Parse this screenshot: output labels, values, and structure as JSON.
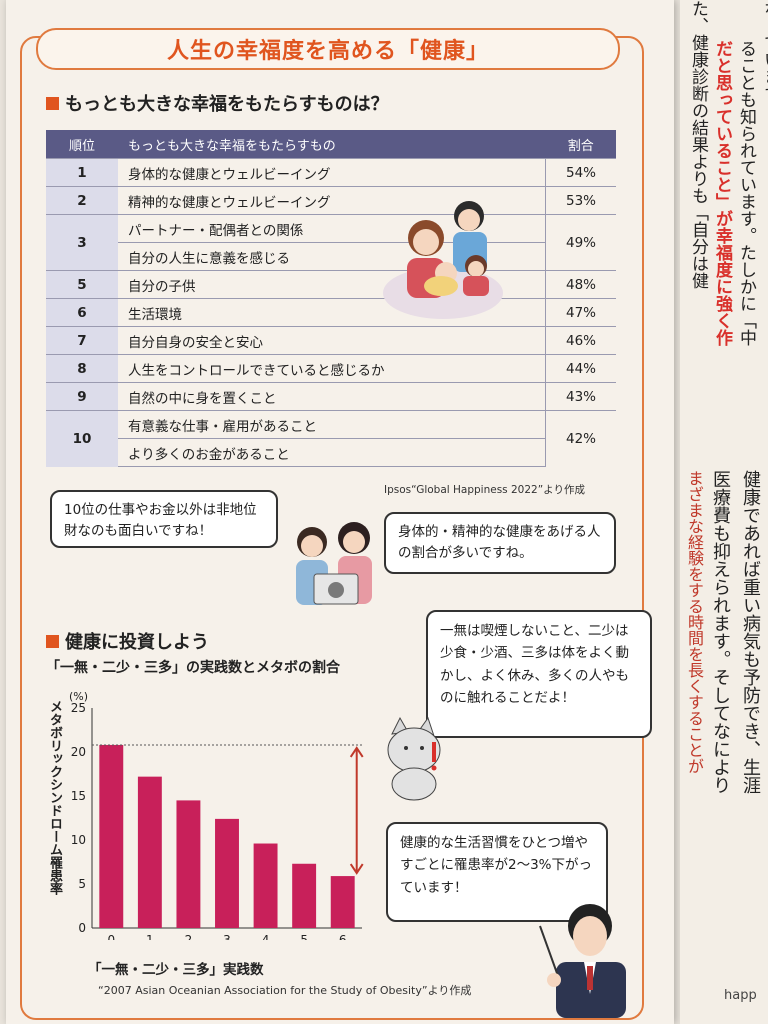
{
  "title": "人生の幸福度を高める「健康」",
  "section1": {
    "heading": "もっとも大きな幸福をもたらすものは？"
  },
  "table": {
    "headers": [
      "順位",
      "もっとも大きな幸福をもたらすもの",
      "割合"
    ],
    "rows": [
      {
        "rank": "1",
        "items": [
          "身体的な健康とウェルビーイング"
        ],
        "pct": "54%"
      },
      {
        "rank": "2",
        "items": [
          "精神的な健康とウェルビーイング"
        ],
        "pct": "53%"
      },
      {
        "rank": "3",
        "items": [
          "パートナー・配偶者との関係",
          "自分の人生に意義を感じる"
        ],
        "pct": "49%"
      },
      {
        "rank": "5",
        "items": [
          "自分の子供"
        ],
        "pct": "48%"
      },
      {
        "rank": "6",
        "items": [
          "生活環境"
        ],
        "pct": "47%"
      },
      {
        "rank": "7",
        "items": [
          "自分自身の安全と安心"
        ],
        "pct": "46%"
      },
      {
        "rank": "8",
        "items": [
          "人生をコントロールできていると感じるか"
        ],
        "pct": "44%"
      },
      {
        "rank": "9",
        "items": [
          "自然の中に身を置くこと"
        ],
        "pct": "43%"
      },
      {
        "rank": "10",
        "items": [
          "有意義な仕事・雇用があること",
          "より多くのお金があること"
        ],
        "pct": "42%"
      }
    ],
    "source": "Ipsos“Global Happiness 2022”より作成"
  },
  "bubbles": {
    "left": "10位の仕事やお金以外は非地位財なのも面白いですね！",
    "right": "身体的・精神的な健康をあげる人の割合が多いですね。",
    "cat": "一無は喫煙しないこと、二少は少食・少酒、三多は体をよく動かし、よく休み、多くの人やものに触れることだよ！",
    "teacher": "健康的な生活習慣をひとつ増やすごとに罹患率が2〜3%下がっています！"
  },
  "section2": {
    "heading": "健康に投資しよう"
  },
  "chart_data": {
    "type": "bar",
    "title": "「一無・二少・三多」の実践数とメタボの割合",
    "xlabel": "「一無・二少・三多」実践数",
    "ylabel": "メタボリックシンドローム罹患率",
    "yunit": "(%)",
    "categories": [
      "0",
      "1",
      "2",
      "3",
      "4",
      "5",
      "6"
    ],
    "values": [
      20.8,
      17.2,
      14.5,
      12.4,
      9.6,
      7.3,
      5.9
    ],
    "ylim": [
      0,
      25
    ],
    "yticks": [
      "0",
      "5",
      "10",
      "15",
      "20",
      "25"
    ],
    "bar_color": "#c8205a",
    "source": "“2007 Asian Oceanian Association for the Study of Obesity”より作成"
  },
  "right_page": {
    "col1": "なっています",
    "col2": "た、健康診断の結果よりも「自分は健",
    "col3": "だと思っていること」が幸福度に強く作",
    "col4": "ることも知られています。たしかに「中",
    "col5": "健康であれば重い病気も予防でき、生涯",
    "col6": "医療費も抑えられます。そしてなにより",
    "col7": "まざまな経験をする時間を長くすることが",
    "footer": "happ"
  }
}
